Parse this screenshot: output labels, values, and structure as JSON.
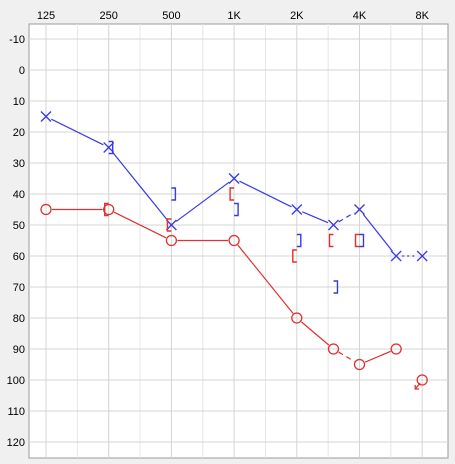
{
  "chart_data": {
    "type": "line",
    "title": "",
    "xlabel": "",
    "ylabel": "",
    "x_ticks": [
      "125",
      "250",
      "500",
      "1K",
      "2K",
      "4K",
      "8K"
    ],
    "y_ticks": [
      -10,
      0,
      10,
      20,
      30,
      40,
      50,
      60,
      70,
      80,
      90,
      100,
      110,
      120
    ],
    "ylim": [
      -10,
      120
    ],
    "y_inverted": true,
    "x_scale": "log2-octave",
    "grid": true,
    "legend": "none",
    "series": [
      {
        "symbol": "circle",
        "color": "#e03030",
        "points": [
          {
            "freq": 125,
            "db": 45
          },
          {
            "freq": 250,
            "db": 45
          },
          {
            "freq": 500,
            "db": 55
          },
          {
            "freq": 1000,
            "db": 55
          },
          {
            "freq": 2000,
            "db": 80
          },
          {
            "freq": 3000,
            "db": 90
          },
          {
            "freq": 4000,
            "db": 95
          },
          {
            "freq": 6000,
            "db": 90
          },
          {
            "freq": 8000,
            "db": 100
          }
        ],
        "connections": [
          "solid",
          "solid",
          "solid",
          "solid",
          "solid",
          "dashed",
          "solid",
          "none"
        ]
      },
      {
        "symbol": "x",
        "color": "#3a3ae0",
        "points": [
          {
            "freq": 125,
            "db": 15
          },
          {
            "freq": 250,
            "db": 25
          },
          {
            "freq": 500,
            "db": 50
          },
          {
            "freq": 1000,
            "db": 35
          },
          {
            "freq": 2000,
            "db": 45
          },
          {
            "freq": 3000,
            "db": 50
          },
          {
            "freq": 4000,
            "db": 45
          },
          {
            "freq": 6000,
            "db": 60
          },
          {
            "freq": 8000,
            "db": 60
          }
        ],
        "connections": [
          "solid",
          "solid",
          "solid",
          "solid",
          "solid",
          "dashed",
          "solid",
          "dotted"
        ]
      }
    ],
    "bone_markers": [
      {
        "symbol": "[",
        "color": "#e03030",
        "freq": 250,
        "db": 45
      },
      {
        "symbol": "[",
        "color": "#e03030",
        "freq": 500,
        "db": 50
      },
      {
        "symbol": "[",
        "color": "#e03030",
        "freq": 1000,
        "db": 40
      },
      {
        "symbol": "[",
        "color": "#e03030",
        "freq": 2000,
        "db": 60
      },
      {
        "symbol": "[",
        "color": "#e03030",
        "freq": 3000,
        "db": 55
      },
      {
        "symbol": "[",
        "color": "#e03030",
        "freq": 4000,
        "db": 55
      },
      {
        "symbol": "]",
        "color": "#3a3ae0",
        "freq": 250,
        "db": 25
      },
      {
        "symbol": "]",
        "color": "#3a3ae0",
        "freq": 500,
        "db": 40
      },
      {
        "symbol": "]",
        "color": "#3a3ae0",
        "freq": 1000,
        "db": 45
      },
      {
        "symbol": "]",
        "color": "#3a3ae0",
        "freq": 2000,
        "db": 55
      },
      {
        "symbol": "]",
        "color": "#3a3ae0",
        "freq": 3000,
        "db": 70
      },
      {
        "symbol": "]",
        "color": "#3a3ae0",
        "freq": 4000,
        "db": 55
      }
    ],
    "no_response": [
      {
        "color": "#e03030",
        "freq": 8000,
        "db": 100
      }
    ]
  }
}
